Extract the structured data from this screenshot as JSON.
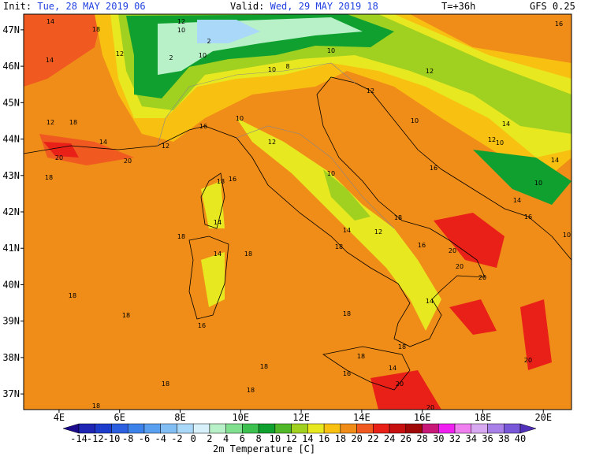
{
  "header": {
    "init_label": "Init:",
    "init": "Tue, 28 MAY 2019  06",
    "valid_label": "Valid:",
    "valid": "Wed, 29 MAY 2019  18",
    "step": "T=+36h",
    "model": "GFS 0.25"
  },
  "map": {
    "xlim": [
      2.83,
      20.93
    ],
    "ylim": [
      36.57,
      47.43
    ],
    "xticks": [
      {
        "value": 4,
        "label": "4E"
      },
      {
        "value": 6,
        "label": "6E"
      },
      {
        "value": 8,
        "label": "8E"
      },
      {
        "value": 10,
        "label": "10E"
      },
      {
        "value": 12,
        "label": "12E"
      },
      {
        "value": 14,
        "label": "14E"
      },
      {
        "value": 16,
        "label": "16E"
      },
      {
        "value": 18,
        "label": "18E"
      },
      {
        "value": 20,
        "label": "20E"
      }
    ],
    "yticks": [
      {
        "value": 47,
        "label": "47N"
      },
      {
        "value": 46,
        "label": "46N"
      },
      {
        "value": 45,
        "label": "45N"
      },
      {
        "value": 44,
        "label": "44N"
      },
      {
        "value": 43,
        "label": "43N"
      },
      {
        "value": 42,
        "label": "42N"
      },
      {
        "value": 41,
        "label": "41N"
      },
      {
        "value": 40,
        "label": "40N"
      },
      {
        "value": 39,
        "label": "39N"
      },
      {
        "value": 38,
        "label": "38N"
      },
      {
        "value": 37,
        "label": "37N"
      }
    ],
    "contour_labels": [
      14,
      18,
      12,
      10,
      14,
      12,
      10,
      2,
      2,
      10,
      10,
      8,
      12,
      16,
      12,
      12,
      18,
      14,
      20,
      20,
      18,
      16,
      10,
      12,
      12,
      10,
      14,
      12,
      10,
      14,
      10,
      18,
      16,
      14,
      16,
      18,
      18,
      14,
      18,
      14,
      12,
      18,
      16,
      20,
      20,
      20,
      18,
      18,
      16,
      14,
      18,
      18,
      18,
      16,
      14,
      18,
      18,
      18,
      20,
      20,
      18,
      20,
      10,
      16,
      14,
      10
    ]
  },
  "colorbar": {
    "title": "2m Temperature [C]",
    "ticks": [
      -14,
      -12,
      -10,
      -8,
      -6,
      -4,
      -2,
      0,
      2,
      4,
      6,
      8,
      10,
      12,
      14,
      16,
      18,
      20,
      22,
      24,
      26,
      28,
      30,
      32,
      34,
      36,
      38,
      40
    ],
    "colors": [
      "#1a0a8c",
      "#1f26b4",
      "#1e3ccc",
      "#2b5fe0",
      "#3c82ea",
      "#5aa0f0",
      "#82bef4",
      "#aad8f8",
      "#d8f0fa",
      "#b8f0c8",
      "#80e090",
      "#3cc050",
      "#10a030",
      "#50b828",
      "#a0d020",
      "#e8e820",
      "#f8c010",
      "#f08c18",
      "#f05a20",
      "#e82018",
      "#c81010",
      "#a00808",
      "#c81878",
      "#f020f0",
      "#f080f0",
      "#d8a8f0",
      "#a880e8",
      "#7858d8",
      "#5030b8"
    ]
  }
}
